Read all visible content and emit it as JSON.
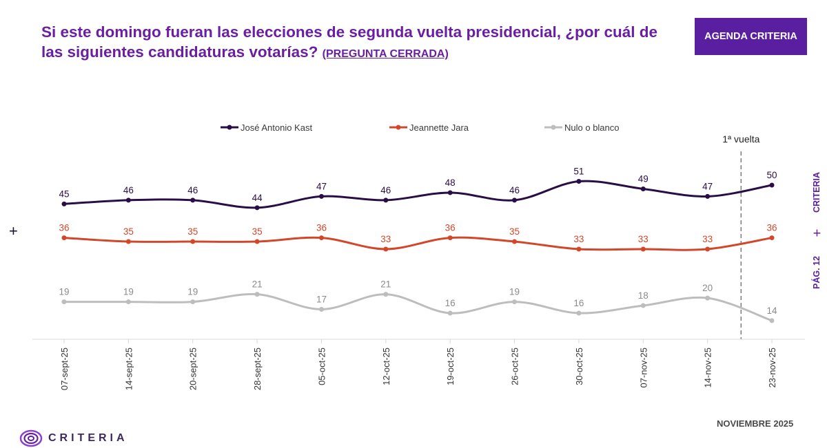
{
  "header": {
    "title_main": "Si este domingo fueran las elecciones de segunda vuelta presidencial, ¿por cuál de las siguientes candidaturas votarías?",
    "title_sub": "(PREGUNTA CERRADA)",
    "agenda_label": "AGENDA CRITERIA"
  },
  "side": {
    "criteria": "CRITERIA",
    "page": "PÁG. 12"
  },
  "footer": {
    "month": "NOVIEMBRE 2025",
    "logo_text": "CRITERIA"
  },
  "colors": {
    "brand": "#5a1fa0",
    "kast": "#2a0d45",
    "jara": "#d2472a",
    "nulo": "#bdbdbd"
  },
  "chart_data": {
    "type": "line",
    "categories": [
      "07-sept-25",
      "14-sept-25",
      "20-sept-25",
      "28-sept-25",
      "05-oct-25",
      "12-oct-25",
      "19-oct-25",
      "26-oct-25",
      "30-oct-25",
      "07-nov-25",
      "14-nov-25",
      "23-nov-25"
    ],
    "series": [
      {
        "name": "José Antonio Kast",
        "color": "#2a0d45",
        "values": [
          45,
          46,
          46,
          44,
          47,
          46,
          48,
          46,
          51,
          49,
          47,
          50
        ]
      },
      {
        "name": "Jeannette Jara",
        "color": "#d2472a",
        "values": [
          36,
          35,
          35,
          35,
          36,
          33,
          36,
          35,
          33,
          33,
          33,
          36
        ]
      },
      {
        "name": "Nulo o blanco",
        "color": "#bdbdbd",
        "values": [
          19,
          19,
          19,
          21,
          17,
          21,
          16,
          19,
          16,
          18,
          20,
          14
        ]
      }
    ],
    "annotation": {
      "label": "1ª vuelta",
      "between": [
        "14-nov-25",
        "23-nov-25"
      ]
    },
    "legend_position": "top",
    "grid": false
  }
}
